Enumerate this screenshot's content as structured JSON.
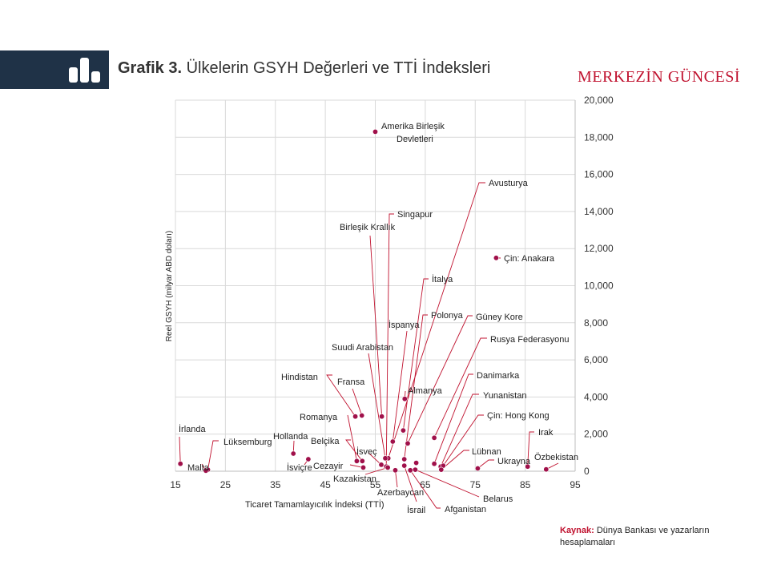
{
  "header": {
    "title_prefix": "Grafik 3.",
    "title_text": "Ülkelerin GSYH Değerleri ve TTİ İndeksleri",
    "brand": "MERKEZİN GÜNCESİ",
    "icon": "bar-chart-icon"
  },
  "source": {
    "label": "Kaynak:",
    "text": "Dünya Bankası ve yazarların hesaplamaları"
  },
  "colors": {
    "header_band": "#1f3247",
    "accent": "#c0122f",
    "point": "#a0104a",
    "grid": "#d9d9d9"
  },
  "chart_data": {
    "type": "scatter",
    "xlabel": "Ticaret Tamamlayıcılık İndeksi (TTİ)",
    "ylabel": "Reel GSYH (milyar ABD doları)",
    "xlim": [
      15,
      95
    ],
    "ylim": [
      0,
      20000
    ],
    "xticks": [
      "15",
      "25",
      "35",
      "45",
      "55",
      "65",
      "75",
      "85",
      "95"
    ],
    "yticks": [
      "0",
      "2,000",
      "4,000",
      "6,000",
      "8,000",
      "10,000",
      "12,000",
      "14,000",
      "16,000",
      "18,000",
      "20,000"
    ],
    "y_axis_side": "right",
    "grid": true,
    "points": [
      {
        "label": "Amerika Birleşik Devletleri",
        "x": 55.0,
        "y": 18300
      },
      {
        "label": "Çin: Anakara",
        "x": 79.2,
        "y": 11500
      },
      {
        "label": "Avusturya",
        "x": 57.6,
        "y": 700
      },
      {
        "label": "Singapur",
        "x": 57.2,
        "y": 250
      },
      {
        "label": "Birleşik Krallık",
        "x": 56.3,
        "y": 2950
      },
      {
        "label": "İtalya",
        "x": 60.6,
        "y": 2200
      },
      {
        "label": "Polonya",
        "x": 60.8,
        "y": 650
      },
      {
        "label": "İspanya",
        "x": 58.5,
        "y": 1600
      },
      {
        "label": "Güney Kore",
        "x": 61.5,
        "y": 1500
      },
      {
        "label": "Rusya Federasyonu",
        "x": 66.8,
        "y": 1800
      },
      {
        "label": "Suudi Arabistan",
        "x": 57.0,
        "y": 700
      },
      {
        "label": "Almanya",
        "x": 60.9,
        "y": 3900
      },
      {
        "label": "Hindistan",
        "x": 51.0,
        "y": 2950
      },
      {
        "label": "Fransa",
        "x": 52.3,
        "y": 3000
      },
      {
        "label": "Danimarka",
        "x": 66.8,
        "y": 400
      },
      {
        "label": "Yunanistan",
        "x": 68.1,
        "y": 250
      },
      {
        "label": "Romanya",
        "x": 51.3,
        "y": 550
      },
      {
        "label": "Çin: Hong Kong",
        "x": 68.6,
        "y": 300
      },
      {
        "label": "Belçika",
        "x": 52.4,
        "y": 550
      },
      {
        "label": "İsveç",
        "x": 56.2,
        "y": 350
      },
      {
        "label": "Hollanda",
        "x": 38.6,
        "y": 950
      },
      {
        "label": "İrlanda",
        "x": 16.0,
        "y": 400
      },
      {
        "label": "Lüksemburg",
        "x": 21.5,
        "y": 80
      },
      {
        "label": "Malta",
        "x": 21.1,
        "y": 30
      },
      {
        "label": "İsviçre",
        "x": 41.6,
        "y": 650
      },
      {
        "label": "Cezayir",
        "x": 52.6,
        "y": 200
      },
      {
        "label": "Kazakistan",
        "x": 57.5,
        "y": 200
      },
      {
        "label": "Azerbaycan",
        "x": 59.0,
        "y": 50
      },
      {
        "label": "İsrail",
        "x": 60.8,
        "y": 300
      },
      {
        "label": "Afganistan",
        "x": 62.0,
        "y": 50
      },
      {
        "label": "Belarus",
        "x": 63.0,
        "y": 80
      },
      {
        "label": "Lübnan",
        "x": 68.2,
        "y": 80
      },
      {
        "label": "Ukrayna",
        "x": 75.5,
        "y": 150
      },
      {
        "label": "Irak",
        "x": 85.5,
        "y": 250
      },
      {
        "label": "Özbekistan",
        "x": 89.2,
        "y": 100
      },
      {
        "label": "",
        "x": 63.2,
        "y": 450
      }
    ]
  }
}
